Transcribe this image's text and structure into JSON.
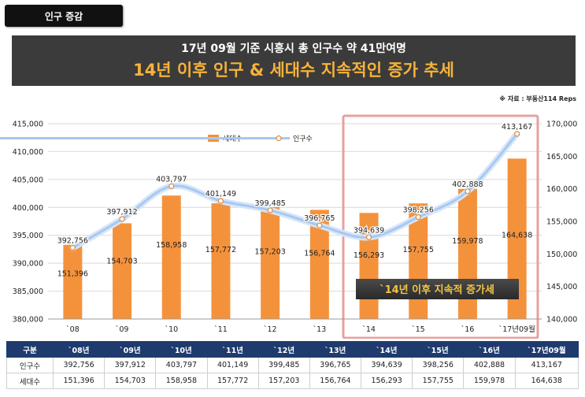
{
  "tag_label": "인구 증감",
  "banner": {
    "subtitle": "17년 09월 기준 시흥시 총 인구수 약 41만여명",
    "title": "14년 이후 인구 & 세대수 지속적인 증가 추세"
  },
  "source_note": "※ 자료 : 부동산114 Reps",
  "callout": "`14년 이후 지속적 증가세",
  "colors": {
    "bar": "#f4923c",
    "line": "#a8c8f0",
    "highlight": "#e8a0a0",
    "table_header": "#1f3b6e"
  },
  "chart_data": {
    "type": "bar+line",
    "categories": [
      "`08",
      "`09",
      "`10",
      "`11",
      "`12",
      "`13",
      "`14",
      "`15",
      "`16",
      "`17년09월"
    ],
    "series": [
      {
        "name": "세대수",
        "type": "bar",
        "axis": "right",
        "values": [
          151396,
          154703,
          158958,
          157772,
          157203,
          156764,
          156293,
          157755,
          159978,
          164638
        ],
        "labels": [
          "151,396",
          "154,703",
          "158,958",
          "157,772",
          "157,203",
          "156,764",
          "156,293",
          "157,755",
          "159,978",
          "164,638"
        ]
      },
      {
        "name": "인구수",
        "type": "line",
        "axis": "left",
        "values": [
          392756,
          397912,
          403797,
          401149,
          399485,
          396765,
          394639,
          398256,
          402888,
          413167
        ],
        "labels": [
          "392,756",
          "397,912",
          "403,797",
          "401,149",
          "399,485",
          "396,765",
          "394,639",
          "398,256",
          "402,888",
          "413,167"
        ]
      }
    ],
    "left_axis": {
      "range": [
        380000,
        415000
      ],
      "ticks": [
        "380,000",
        "385,000",
        "390,000",
        "395,000",
        "400,000",
        "405,000",
        "410,000",
        "415,000"
      ]
    },
    "right_axis": {
      "range": [
        140000,
        170000
      ],
      "ticks": [
        "140,000",
        "145,000",
        "150,000",
        "155,000",
        "160,000",
        "165,000",
        "170,000"
      ]
    },
    "grid": true,
    "legend_position": "top-center",
    "highlight_categories": [
      "`14",
      "`15",
      "`16",
      "`17년09월"
    ]
  },
  "table": {
    "header": [
      "구분",
      "`08년",
      "`09년",
      "`10년",
      "`11년",
      "`12년",
      "`13년",
      "`14년",
      "`15년",
      "`16년",
      "`17년09월"
    ],
    "rows": [
      [
        "인구수",
        "392,756",
        "397,912",
        "403,797",
        "401,149",
        "399,485",
        "396,765",
        "394,639",
        "398,256",
        "402,888",
        "413,167"
      ],
      [
        "세대수",
        "151,396",
        "154,703",
        "158,958",
        "157,772",
        "157,203",
        "156,764",
        "156,293",
        "157,755",
        "159,978",
        "164,638"
      ]
    ]
  }
}
